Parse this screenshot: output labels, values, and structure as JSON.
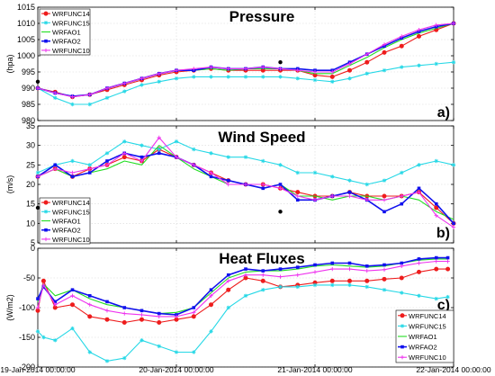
{
  "colors": {
    "WRFUNC14": "#ee1c1c",
    "WRFUNC15": "#26d8e6",
    "WRFAO1": "#22dd22",
    "WRFAO2": "#1111ee",
    "WRFUNC10": "#ee33ee"
  },
  "markers": {
    "WRFUNC14": "circle",
    "WRFUNC15": "star",
    "WRFAO1": "none",
    "WRFAO2": "square",
    "WRFUNC10": "plus"
  },
  "x_tick_labels": [
    "19-Jan-2014 00:00:00",
    "20-Jan-2014 00:00:00",
    "21-Jan-2014 00:00:00",
    "22-Jan-2014 00:00:00"
  ],
  "chart_data": [
    {
      "type": "line",
      "title": "Pressure",
      "ylabel": "(hpa)",
      "panel_label": "a)",
      "ylim": [
        980,
        1015
      ],
      "yticks": [
        980,
        985,
        990,
        995,
        1000,
        1005,
        1010,
        1015
      ],
      "xlim": [
        0,
        72
      ],
      "legend_position": "top-left",
      "grid": true,
      "observations": [
        {
          "x": 0,
          "y": 992
        },
        {
          "x": 42,
          "y": 998
        }
      ],
      "series": [
        {
          "name": "WRFUNC14",
          "x": [
            0,
            3,
            6,
            9,
            12,
            15,
            18,
            21,
            24,
            27,
            30,
            33,
            36,
            39,
            42,
            45,
            48,
            51,
            54,
            57,
            60,
            63,
            66,
            69,
            72
          ],
          "values": [
            990,
            988.8,
            987.3,
            988,
            989.5,
            991,
            992.5,
            994,
            995,
            995.5,
            996,
            995.5,
            995.5,
            995.5,
            995.5,
            995.5,
            994,
            993.5,
            995.5,
            998,
            1001,
            1003,
            1006,
            1008,
            1010
          ]
        },
        {
          "name": "WRFUNC15",
          "x": [
            0,
            3,
            6,
            9,
            12,
            15,
            18,
            21,
            24,
            27,
            30,
            33,
            36,
            39,
            42,
            45,
            48,
            51,
            54,
            57,
            60,
            63,
            66,
            69,
            72
          ],
          "values": [
            990,
            987,
            985,
            985,
            987,
            989,
            991,
            992,
            993,
            993.5,
            993.5,
            993.5,
            993.5,
            993.5,
            993.5,
            993,
            992.5,
            992,
            993,
            994.5,
            995.5,
            996.5,
            997,
            997.5,
            998
          ]
        },
        {
          "name": "WRFAO1",
          "x": [
            0,
            3,
            6,
            9,
            12,
            15,
            18,
            21,
            24,
            27,
            30,
            33,
            36,
            39,
            42,
            45,
            48,
            51,
            54,
            57,
            60,
            63,
            66,
            69,
            72
          ],
          "values": [
            990,
            988.5,
            987.5,
            988,
            990,
            991.5,
            993,
            994.5,
            995.5,
            995.5,
            996,
            995.5,
            996,
            996,
            996,
            995.5,
            994.5,
            994.5,
            997,
            999.5,
            1002.5,
            1005,
            1007,
            1008.5,
            1010
          ]
        },
        {
          "name": "WRFAO2",
          "x": [
            0,
            3,
            6,
            9,
            12,
            15,
            18,
            21,
            24,
            27,
            30,
            33,
            36,
            39,
            42,
            45,
            48,
            51,
            54,
            57,
            60,
            63,
            66,
            69,
            72
          ],
          "values": [
            990,
            988.5,
            987.5,
            988,
            990,
            991.5,
            993,
            994.5,
            995.5,
            995.5,
            996.5,
            996,
            996,
            996.5,
            996,
            996,
            995.5,
            995.5,
            998,
            1000.5,
            1003,
            1005.5,
            1007.5,
            1009,
            1010
          ]
        },
        {
          "name": "WRFUNC10",
          "x": [
            0,
            3,
            6,
            9,
            12,
            15,
            18,
            21,
            24,
            27,
            30,
            33,
            36,
            39,
            42,
            45,
            48,
            51,
            54,
            57,
            60,
            63,
            66,
            69,
            72
          ],
          "values": [
            990,
            988.5,
            987.3,
            988,
            990,
            991.5,
            993,
            994.5,
            995.5,
            996,
            996.5,
            996,
            996,
            996.5,
            996,
            995.5,
            995,
            995,
            997.5,
            1000.5,
            1003.5,
            1006,
            1008,
            1009.5,
            1010
          ]
        }
      ]
    },
    {
      "type": "line",
      "title": "Wind Speed",
      "ylabel": "(m/s)",
      "panel_label": "b)",
      "ylim": [
        5,
        35
      ],
      "yticks": [
        5,
        10,
        15,
        20,
        25,
        30,
        35
      ],
      "xlim": [
        0,
        72
      ],
      "legend_position": "bottom-left",
      "grid": true,
      "observations": [
        {
          "x": 0,
          "y": 14
        },
        {
          "x": 42,
          "y": 13
        }
      ],
      "series": [
        {
          "name": "WRFUNC14",
          "x": [
            0,
            3,
            6,
            9,
            12,
            15,
            18,
            21,
            24,
            27,
            30,
            33,
            36,
            39,
            42,
            45,
            48,
            51,
            54,
            57,
            60,
            63,
            66,
            69,
            72
          ],
          "values": [
            22,
            24,
            22,
            24,
            25,
            27,
            26,
            29,
            27,
            25,
            23,
            21,
            20,
            20,
            19,
            18,
            17,
            17,
            18,
            17,
            17,
            17,
            18,
            14,
            10
          ]
        },
        {
          "name": "WRFUNC15",
          "x": [
            0,
            3,
            6,
            9,
            12,
            15,
            18,
            21,
            24,
            27,
            30,
            33,
            36,
            39,
            42,
            45,
            48,
            51,
            54,
            57,
            60,
            63,
            66,
            69,
            72
          ],
          "values": [
            23,
            25,
            26,
            25,
            28,
            31,
            30,
            29,
            31,
            29,
            28,
            27,
            27,
            26,
            25,
            23,
            23,
            22,
            21,
            20,
            21,
            23,
            25,
            26,
            25
          ]
        },
        {
          "name": "WRFAO1",
          "x": [
            0,
            3,
            6,
            9,
            12,
            15,
            18,
            21,
            24,
            27,
            30,
            33,
            36,
            39,
            42,
            45,
            48,
            51,
            54,
            57,
            60,
            63,
            66,
            69,
            72
          ],
          "values": [
            22,
            24,
            22,
            23,
            24,
            26,
            25,
            30,
            27,
            24,
            22,
            20,
            20,
            19,
            20,
            17,
            17,
            16,
            17,
            17,
            16,
            17,
            16,
            13,
            11
          ]
        },
        {
          "name": "WRFAO2",
          "x": [
            0,
            3,
            6,
            9,
            12,
            15,
            18,
            21,
            24,
            27,
            30,
            33,
            36,
            39,
            42,
            45,
            48,
            51,
            54,
            57,
            60,
            63,
            66,
            69,
            72
          ],
          "values": [
            22,
            25,
            22,
            23,
            26,
            28,
            27,
            28,
            27,
            25,
            22,
            21,
            20,
            19,
            20,
            16,
            16,
            17,
            18,
            16,
            13,
            15,
            19,
            15,
            10
          ]
        },
        {
          "name": "WRFUNC10",
          "x": [
            0,
            3,
            6,
            9,
            12,
            15,
            18,
            21,
            24,
            27,
            30,
            33,
            36,
            39,
            42,
            45,
            48,
            51,
            54,
            57,
            60,
            63,
            66,
            69,
            72
          ],
          "values": [
            22,
            24,
            23,
            24,
            25,
            28,
            26,
            32,
            27,
            25,
            23,
            20,
            20,
            20,
            19,
            17,
            16,
            17,
            17,
            16,
            16,
            17,
            18,
            12,
            9
          ]
        }
      ]
    },
    {
      "type": "line",
      "title": "Heat Fluxes",
      "ylabel": "(W/m2)",
      "panel_label": "c)",
      "ylim": [
        -200,
        0
      ],
      "yticks": [
        -200,
        -150,
        -100,
        -50,
        0
      ],
      "xlim": [
        0,
        72
      ],
      "legend_position": "bottom-right",
      "grid": true,
      "series": [
        {
          "name": "WRFUNC14",
          "x": [
            0,
            1,
            3,
            6,
            9,
            12,
            15,
            18,
            21,
            24,
            27,
            30,
            33,
            36,
            39,
            42,
            45,
            48,
            51,
            54,
            57,
            60,
            63,
            66,
            69,
            71
          ],
          "values": [
            -105,
            -55,
            -100,
            -95,
            -115,
            -120,
            -125,
            -120,
            -125,
            -120,
            -115,
            -95,
            -70,
            -50,
            -55,
            -65,
            -62,
            -58,
            -55,
            -55,
            -55,
            -52,
            -50,
            -40,
            -35,
            -35
          ]
        },
        {
          "name": "WRFUNC15",
          "x": [
            0,
            1,
            3,
            6,
            9,
            12,
            15,
            18,
            21,
            24,
            27,
            30,
            33,
            36,
            39,
            42,
            45,
            48,
            51,
            54,
            57,
            60,
            63,
            66,
            69,
            71
          ],
          "values": [
            -140,
            -150,
            -155,
            -135,
            -175,
            -190,
            -185,
            -155,
            -165,
            -175,
            -175,
            -140,
            -100,
            -80,
            -70,
            -65,
            -65,
            -62,
            -62,
            -62,
            -65,
            -70,
            -75,
            -80,
            -85,
            -82
          ]
        },
        {
          "name": "WRFAO1",
          "x": [
            0,
            1,
            3,
            6,
            9,
            12,
            15,
            18,
            21,
            24,
            27,
            30,
            33,
            36,
            39,
            42,
            45,
            48,
            51,
            54,
            57,
            60,
            63,
            66,
            69,
            71
          ],
          "values": [
            -90,
            -60,
            -80,
            -70,
            -85,
            -95,
            -100,
            -105,
            -110,
            -108,
            -100,
            -75,
            -50,
            -40,
            -38,
            -38,
            -35,
            -30,
            -28,
            -30,
            -32,
            -30,
            -25,
            -20,
            -18,
            -18
          ]
        },
        {
          "name": "WRFAO2",
          "x": [
            0,
            1,
            3,
            6,
            9,
            12,
            15,
            18,
            21,
            24,
            27,
            30,
            33,
            36,
            39,
            42,
            45,
            48,
            51,
            54,
            57,
            60,
            63,
            66,
            69,
            71
          ],
          "values": [
            -85,
            -65,
            -90,
            -70,
            -80,
            -90,
            -100,
            -105,
            -110,
            -112,
            -100,
            -70,
            -45,
            -35,
            -38,
            -35,
            -32,
            -28,
            -25,
            -25,
            -30,
            -28,
            -25,
            -18,
            -16,
            -16
          ]
        },
        {
          "name": "WRFUNC10",
          "x": [
            0,
            1,
            3,
            6,
            9,
            12,
            15,
            18,
            21,
            24,
            27,
            30,
            33,
            36,
            39,
            42,
            45,
            48,
            51,
            54,
            57,
            60,
            63,
            66,
            69,
            71
          ],
          "values": [
            -100,
            -62,
            -95,
            -80,
            -95,
            -105,
            -110,
            -112,
            -115,
            -115,
            -108,
            -80,
            -55,
            -45,
            -45,
            -48,
            -45,
            -40,
            -35,
            -35,
            -38,
            -36,
            -30,
            -25,
            -22,
            -22
          ]
        }
      ]
    }
  ]
}
